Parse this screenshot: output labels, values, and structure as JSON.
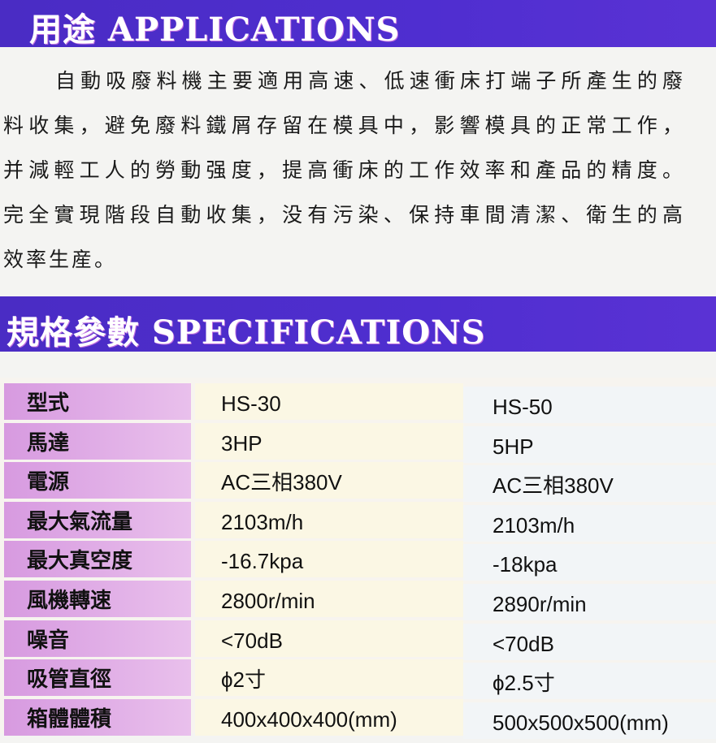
{
  "applications": {
    "heading": "用途 APPLICATIONS",
    "lines": [
      "自動吸廢料機主要適用高速、低速衝床打端子所產生的廢",
      "料收集，避免廢料鐵屑存留在模具中，影響模具的正常工作，",
      "并減輕工人的勞動强度，提高衝床的工作效率和產品的精度。",
      "完全實現階段自動收集，没有污染、保持車間清潔、衛生的高",
      "效率生産。"
    ]
  },
  "specifications": {
    "heading": "規格參數 SPECIFICATIONS",
    "rows": [
      [
        "型式",
        "HS-30",
        "HS-50"
      ],
      [
        "馬達",
        "3HP",
        "5HP"
      ],
      [
        "電源",
        "AC三相380V",
        "AC三相380V"
      ],
      [
        "最大氣流量",
        "2103m/h",
        "2103m/h"
      ],
      [
        "最大真空度",
        "-16.7kpa",
        "-18kpa"
      ],
      [
        "風機轉速",
        "2800r/min",
        "2890r/min"
      ],
      [
        "噪音",
        "<70dB",
        "<70dB"
      ],
      [
        "吸管直徑",
        "ϕ2寸",
        "ϕ2.5寸"
      ],
      [
        "箱體體積",
        "400x400x400(mm)",
        "500x500x500(mm)"
      ]
    ]
  },
  "colors": {
    "header_bar": "#4a2cc4",
    "label_cell": "#d79ae0",
    "model1_cell": "#fbf7e4",
    "model2_cell": "#f2f5f7"
  }
}
